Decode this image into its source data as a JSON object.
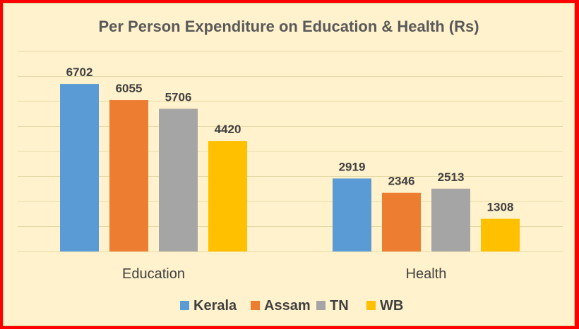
{
  "chart_data": {
    "type": "bar",
    "title": "Per Person Expenditure on Education & Health (Rs)",
    "categories": [
      "Education",
      "Health"
    ],
    "series": [
      {
        "name": "Kerala",
        "values": [
          6702,
          2919
        ],
        "color": "#5b9bd5"
      },
      {
        "name": "Assam",
        "values": [
          6055,
          2346
        ],
        "color": "#ed7d31"
      },
      {
        "name": "TN",
        "values": [
          5706,
          2513
        ],
        "color": "#a5a5a5"
      },
      {
        "name": "WB",
        "values": [
          4420,
          1308
        ],
        "color": "#ffc000"
      }
    ],
    "ylim": [
      0,
      8000
    ],
    "gridlines": true,
    "legend_position": "bottom",
    "xlabel": "",
    "ylabel": ""
  },
  "colors": {
    "border": "#ff0000",
    "background": "#fff2cc",
    "gridline": "#e6d9a8",
    "text": "#404040"
  }
}
